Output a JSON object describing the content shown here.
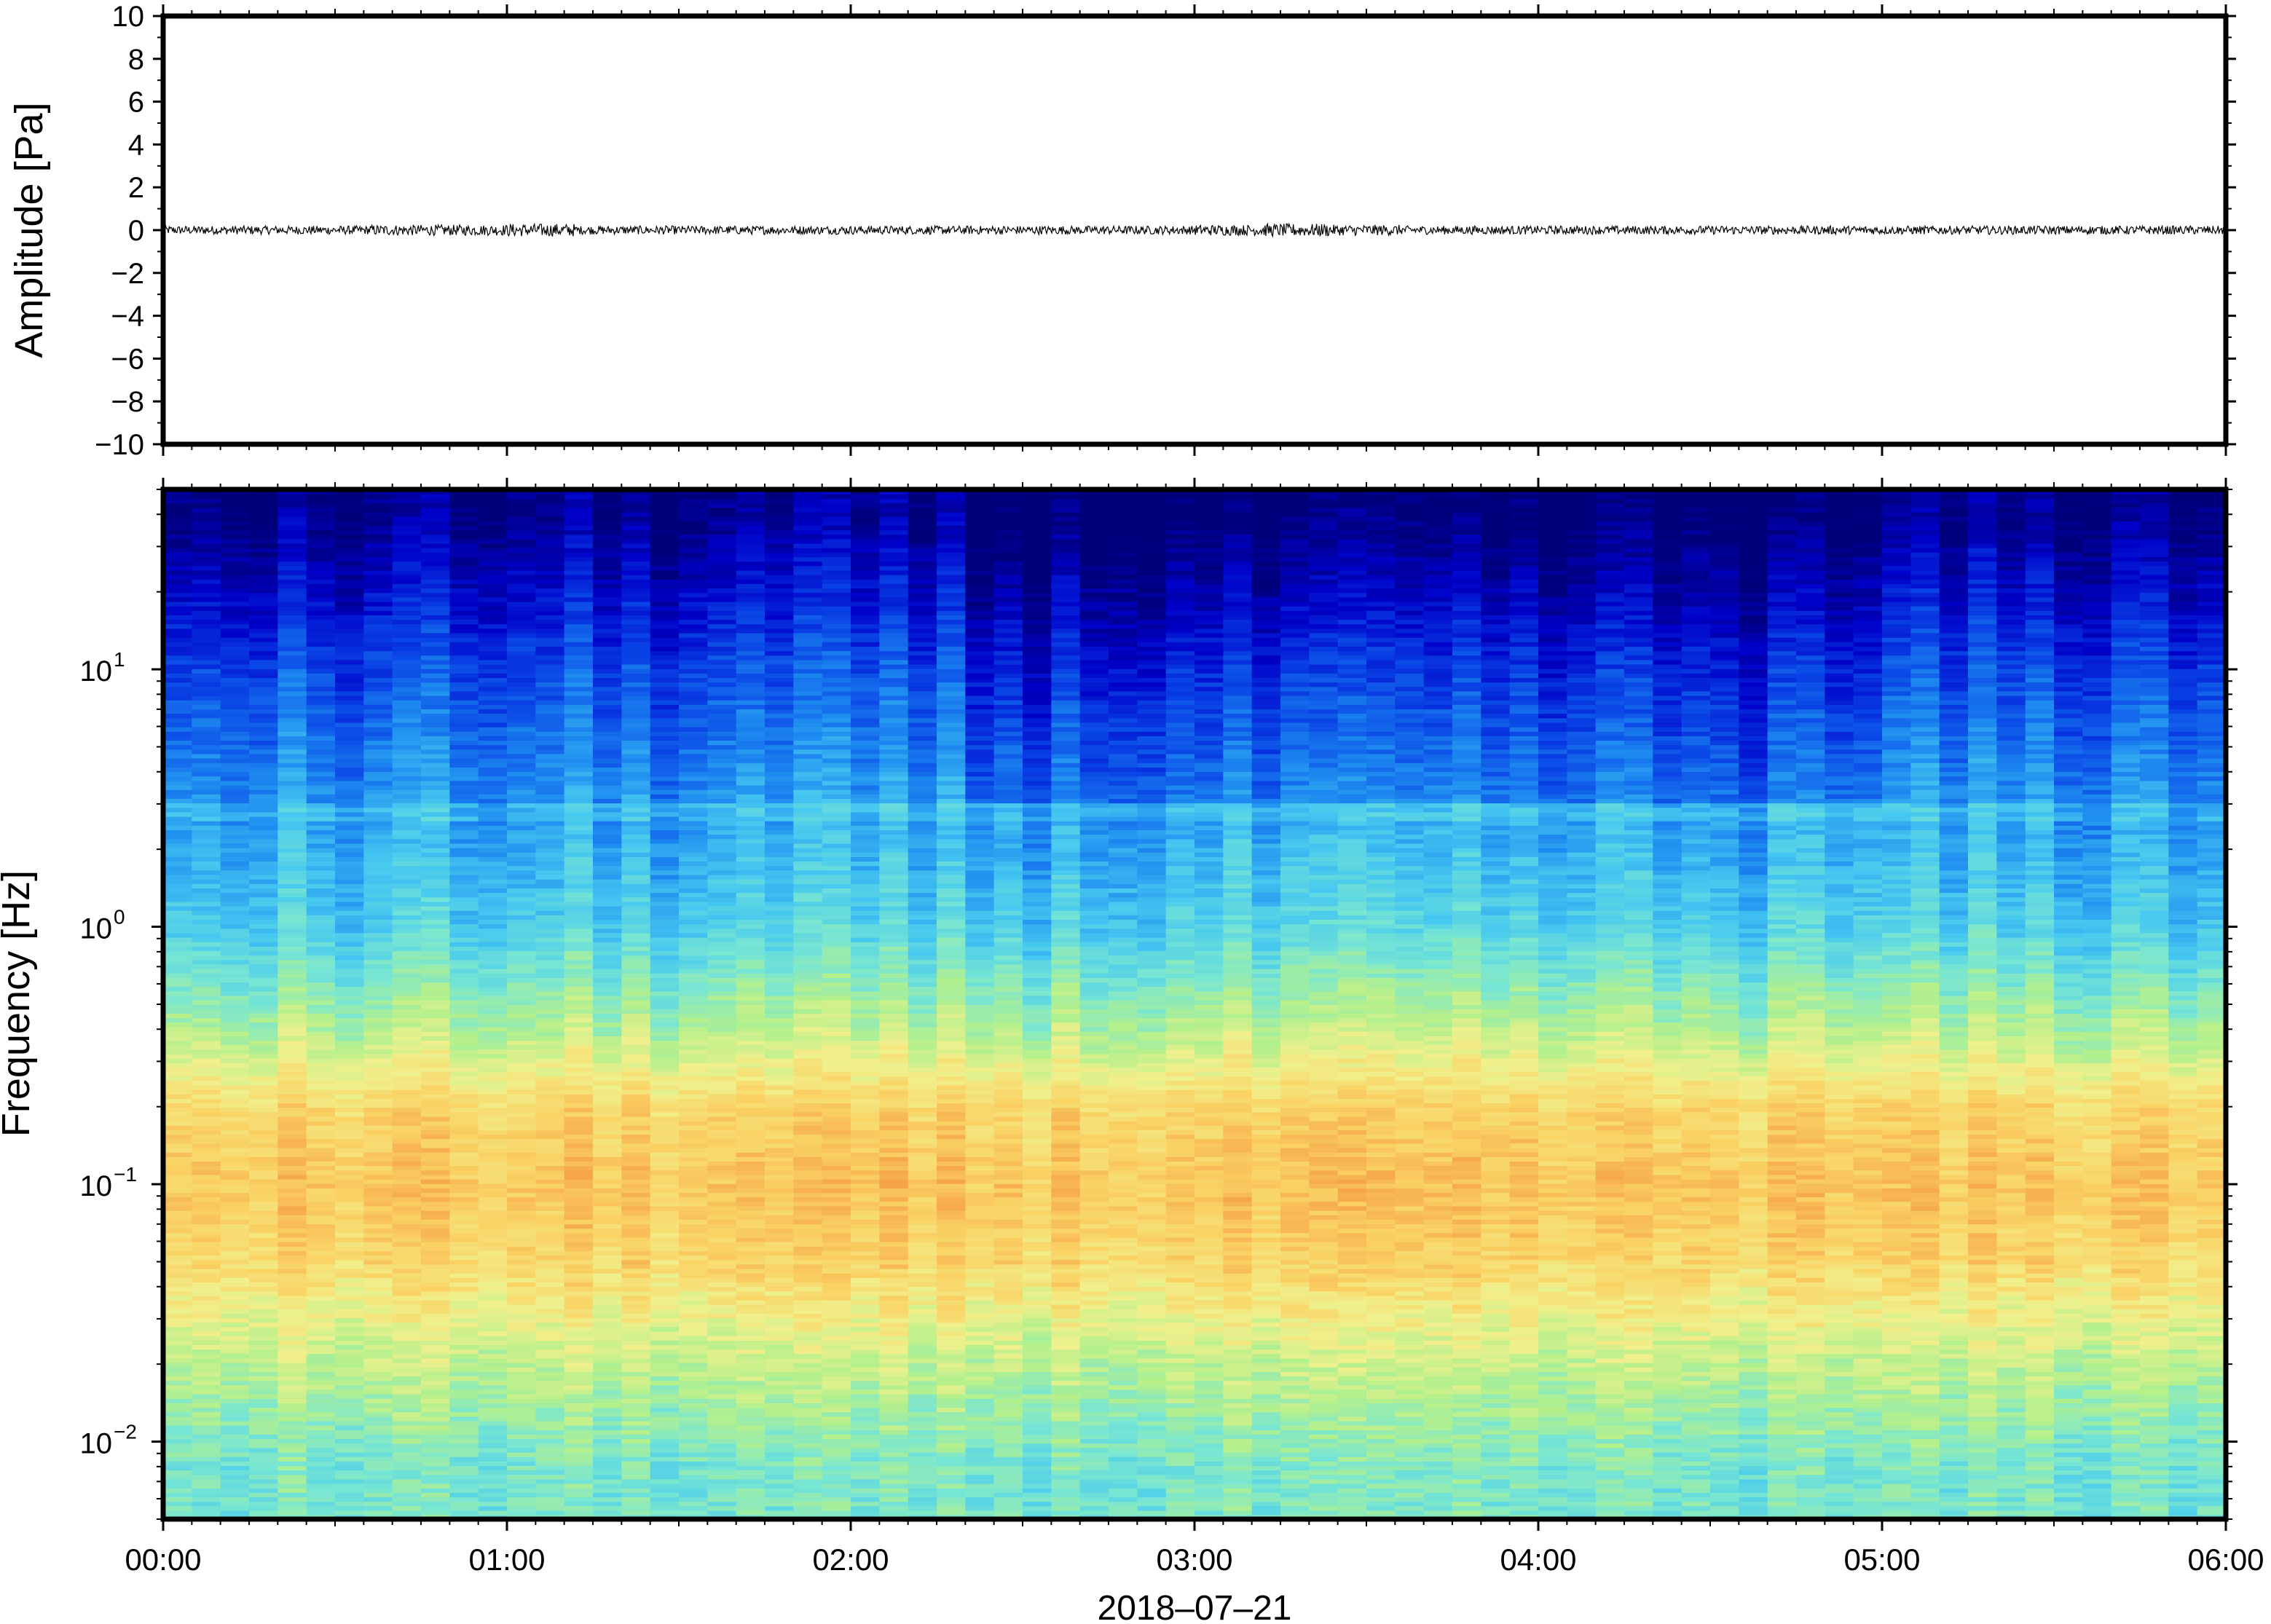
{
  "chart_data": [
    {
      "type": "line",
      "panel": "waveform",
      "ylabel": "Amplitude [Pa]",
      "ylim": [
        -10,
        10
      ],
      "y_ticks": [
        -10,
        -8,
        -6,
        -4,
        -2,
        0,
        2,
        4,
        6,
        8,
        10
      ],
      "y_tick_labels": [
        "−10",
        "−8",
        "−6",
        "−4",
        "−2",
        "0",
        "2",
        "4",
        "6",
        "8",
        "10"
      ],
      "x_tick_labels": [
        "00:00",
        "01:00",
        "02:00",
        "03:00",
        "04:00",
        "05:00",
        "06:00"
      ],
      "series_color": "#000000",
      "amplitude_envelope": [
        0.2,
        0.2,
        0.2,
        0.25,
        0.25,
        0.3,
        0.2,
        0.2,
        0.2,
        0.2,
        0.2,
        0.2,
        0.2,
        0.2,
        0.2,
        0.25,
        0.3,
        0.25,
        0.2,
        0.2,
        0.2,
        0.2,
        0.2,
        0.2,
        0.2,
        0.2,
        0.2,
        0.2,
        0.2,
        0.2
      ]
    },
    {
      "type": "heatmap",
      "panel": "spectrogram",
      "ylabel": "Frequency [Hz]",
      "xlabel": "2018–07–21",
      "y_scale": "log",
      "ylim": [
        0.005,
        50
      ],
      "y_ticks": [
        0.01,
        0.1,
        1,
        10
      ],
      "y_tick_labels": [
        {
          "base": "10",
          "exp": "−2"
        },
        {
          "base": "10",
          "exp": "−1"
        },
        {
          "base": "10",
          "exp": "0"
        },
        {
          "base": "10",
          "exp": "1"
        }
      ],
      "x_tick_labels": [
        "00:00",
        "01:00",
        "02:00",
        "03:00",
        "04:00",
        "05:00",
        "06:00"
      ],
      "xlim": [
        "00:00",
        "06:00"
      ],
      "colormap": "jet-like (dark blue = low power, orange/red = high power)",
      "colormap_stops": [
        "#00007a",
        "#0000c8",
        "#0a46e6",
        "#1e8cf0",
        "#46c8f0",
        "#78e6d2",
        "#b4f08c",
        "#f0f08c",
        "#fad264",
        "#f5a046",
        "#eb6e32"
      ],
      "description_levels": [
        {
          "freq": 40,
          "level": 0.02
        },
        {
          "freq": 10,
          "level": 0.2
        },
        {
          "freq": 3,
          "level": 0.32
        },
        {
          "freq": 1,
          "level": 0.42
        },
        {
          "freq": 0.4,
          "level": 0.6
        },
        {
          "freq": 0.2,
          "level": 0.78
        },
        {
          "freq": 0.1,
          "level": 0.82
        },
        {
          "freq": 0.05,
          "level": 0.78
        },
        {
          "freq": 0.02,
          "level": 0.62
        },
        {
          "freq": 0.008,
          "level": 0.5
        }
      ]
    }
  ]
}
